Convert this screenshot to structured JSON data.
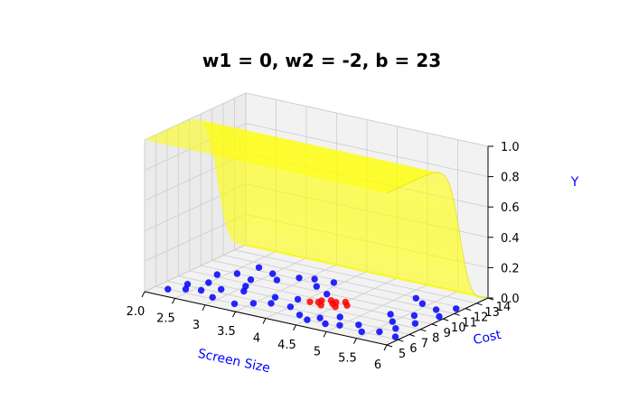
{
  "chart_data": {
    "type": "3d-surface-scatter",
    "title": "w1 = 0, w2 = -2, b = 23",
    "xlabel": "Screen Size",
    "ylabel": "Cost",
    "zlabel": "Y",
    "xlim": [
      2.0,
      6.0
    ],
    "ylim": [
      5,
      14
    ],
    "zlim": [
      0.0,
      1.0
    ],
    "x_ticks": [
      "2.0",
      "2.5",
      "3",
      "3.5",
      "4",
      "4.5",
      "5",
      "5.5",
      "6"
    ],
    "y_ticks": [
      "5",
      "6",
      "7",
      "8",
      "9",
      "10",
      "11",
      "12",
      "13",
      "14"
    ],
    "z_ticks": [
      "0.0",
      "0.2",
      "0.4",
      "0.6",
      "0.8",
      "1.0"
    ],
    "surface": {
      "model": "sigmoid(w1*x + w2*y + b)",
      "w1": 0,
      "w2": -2,
      "b": 23,
      "color": "#ffff00"
    },
    "colors": {
      "class0": "#0000ff",
      "class1": "#ff0000",
      "surface": "#ffff00",
      "axis_label": "#0000ff"
    },
    "series": [
      {
        "color": "#0000ff",
        "points": [
          [
            2.2,
            6.0
          ],
          [
            2.4,
            6.5
          ],
          [
            2.3,
            7.2
          ],
          [
            2.6,
            6.8
          ],
          [
            2.5,
            8.0
          ],
          [
            2.8,
            7.5
          ],
          [
            2.9,
            6.2
          ],
          [
            3.0,
            8.6
          ],
          [
            2.4,
            9.3
          ],
          [
            2.6,
            10.0
          ],
          [
            2.9,
            9.6
          ],
          [
            3.2,
            10.3
          ],
          [
            3.0,
            11.0
          ],
          [
            3.4,
            11.2
          ],
          [
            3.6,
            11.5
          ],
          [
            3.9,
            11.6
          ],
          [
            3.3,
            6.0
          ],
          [
            3.5,
            6.6
          ],
          [
            3.7,
            7.1
          ],
          [
            3.6,
            8.0
          ],
          [
            3.9,
            8.4
          ],
          [
            4.0,
            7.2
          ],
          [
            4.3,
            6.4
          ],
          [
            4.5,
            6.0
          ],
          [
            4.6,
            6.6
          ],
          [
            4.8,
            7.3
          ],
          [
            5.0,
            6.2
          ],
          [
            5.2,
            6.8
          ],
          [
            5.4,
            6.0
          ],
          [
            5.6,
            6.5
          ],
          [
            5.7,
            7.4
          ],
          [
            5.9,
            6.3
          ],
          [
            5.5,
            8.2
          ],
          [
            5.8,
            8.6
          ],
          [
            5.6,
            9.6
          ],
          [
            5.9,
            10.2
          ],
          [
            5.7,
            11.0
          ],
          [
            5.4,
            11.4
          ],
          [
            5.9,
            11.7
          ],
          [
            4.1,
            9.9
          ],
          [
            3.8,
            10.6
          ],
          [
            5.3,
            9.1
          ],
          [
            4.8,
            6.0
          ],
          [
            2.7,
            11.4
          ],
          [
            5.2,
            11.9
          ],
          [
            3.1,
            7.9
          ]
        ]
      },
      {
        "color": "#ff0000",
        "points": [
          [
            4.1,
            8.4
          ],
          [
            4.2,
            8.9
          ],
          [
            4.3,
            8.3
          ],
          [
            4.4,
            8.8
          ],
          [
            4.5,
            8.5
          ],
          [
            4.6,
            9.0
          ],
          [
            4.3,
            9.2
          ],
          [
            4.5,
            9.4
          ],
          [
            4.2,
            8.6
          ],
          [
            4.4,
            9.1
          ]
        ]
      }
    ]
  }
}
